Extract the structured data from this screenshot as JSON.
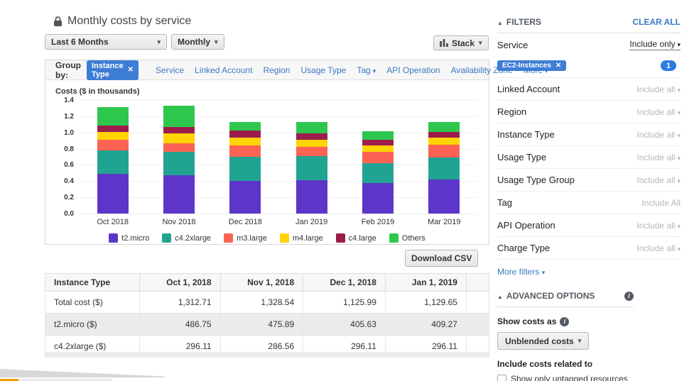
{
  "page": {
    "title": "Monthly costs by service"
  },
  "toolbar": {
    "date_range": "Last 6 Months",
    "granularity": "Monthly",
    "stack_label": "Stack"
  },
  "group_by": {
    "label": "Group by:",
    "active_chip": "Instance Type",
    "links": [
      {
        "label": "Service",
        "caret": false
      },
      {
        "label": "Linked Account",
        "caret": false
      },
      {
        "label": "Region",
        "caret": false
      },
      {
        "label": "Usage Type",
        "caret": false
      },
      {
        "label": "Tag",
        "caret": true
      },
      {
        "label": "API Operation",
        "caret": false
      },
      {
        "label": "Availability Zone",
        "caret": false
      },
      {
        "label": "More",
        "caret": true
      }
    ]
  },
  "chart_data": {
    "type": "bar",
    "stacked": true,
    "title": "Costs ($ in thousands)",
    "categories": [
      "Oct 2018",
      "Nov 2018",
      "Dec 2018",
      "Jan 2019",
      "Feb 2019",
      "Mar 2019"
    ],
    "series": [
      {
        "name": "t2.micro",
        "color": "#5d36c9",
        "values": [
          0.487,
          0.476,
          0.406,
          0.409,
          0.38,
          0.42
        ]
      },
      {
        "name": "c4.2xlarge",
        "color": "#20a491",
        "values": [
          0.296,
          0.287,
          0.296,
          0.296,
          0.24,
          0.27
        ]
      },
      {
        "name": "m3.large",
        "color": "#fc6355",
        "values": [
          0.131,
          0.107,
          0.139,
          0.12,
          0.14,
          0.156
        ]
      },
      {
        "name": "m4.large",
        "color": "#ffd402",
        "values": [
          0.089,
          0.12,
          0.094,
          0.088,
          0.08,
          0.089
        ]
      },
      {
        "name": "c4.large",
        "color": "#9c1c4c",
        "values": [
          0.079,
          0.075,
          0.088,
          0.079,
          0.074,
          0.076
        ]
      },
      {
        "name": "Others",
        "color": "#2ec74e",
        "values": [
          0.23,
          0.263,
          0.103,
          0.137,
          0.1,
          0.119
        ]
      }
    ],
    "ylabel": "Costs ($ in thousands)",
    "ylim": [
      0,
      1.4
    ],
    "yticks": [
      1.4,
      1.2,
      1.0,
      0.8,
      0.6,
      0.4,
      0.2,
      0.0
    ],
    "grid": true,
    "legend_position": "bottom"
  },
  "download": {
    "label": "Download CSV"
  },
  "table": {
    "headers": [
      "Instance Type",
      "Oct 1, 2018",
      "Nov 1, 2018",
      "Dec 1, 2018",
      "Jan 1, 2019"
    ],
    "rows": [
      {
        "label": "Total cost ($)",
        "values": [
          "1,312.71",
          "1,328.54",
          "1,125.99",
          "1,129.65"
        ],
        "shaded": false
      },
      {
        "label": "t2.micro ($)",
        "values": [
          "486.75",
          "475.89",
          "405.63",
          "409.27"
        ],
        "shaded": true
      },
      {
        "label": "c4.2xlarge ($)",
        "values": [
          "296.11",
          "286.56",
          "296.11",
          "296.11"
        ],
        "shaded": false
      }
    ]
  },
  "filters": {
    "heading": "FILTERS",
    "clear_all": "CLEAR ALL",
    "rows": [
      {
        "label": "Service",
        "value": "Include only",
        "active": true,
        "caret": true,
        "chip": "EC2-Instances",
        "badge": "1"
      },
      {
        "label": "Linked Account",
        "value": "Include all",
        "active": false,
        "caret": true
      },
      {
        "label": "Region",
        "value": "Include all",
        "active": false,
        "caret": true
      },
      {
        "label": "Instance Type",
        "value": "Include all",
        "active": false,
        "caret": true
      },
      {
        "label": "Usage Type",
        "value": "Include all",
        "active": false,
        "caret": true
      },
      {
        "label": "Usage Type Group",
        "value": "Include all",
        "active": false,
        "caret": true
      },
      {
        "label": "Tag",
        "value": "Include All",
        "active": false,
        "caret": false
      },
      {
        "label": "API Operation",
        "value": "Include all",
        "active": false,
        "caret": true
      },
      {
        "label": "Charge Type",
        "value": "Include all",
        "active": false,
        "caret": true
      }
    ],
    "more_filters": "More filters"
  },
  "advanced": {
    "heading": "ADVANCED OPTIONS",
    "show_costs_as": "Show costs as",
    "costs_dropdown": "Unblended costs",
    "include_costs": "Include costs related to",
    "checkbox_label": "Show only untagged resources"
  }
}
